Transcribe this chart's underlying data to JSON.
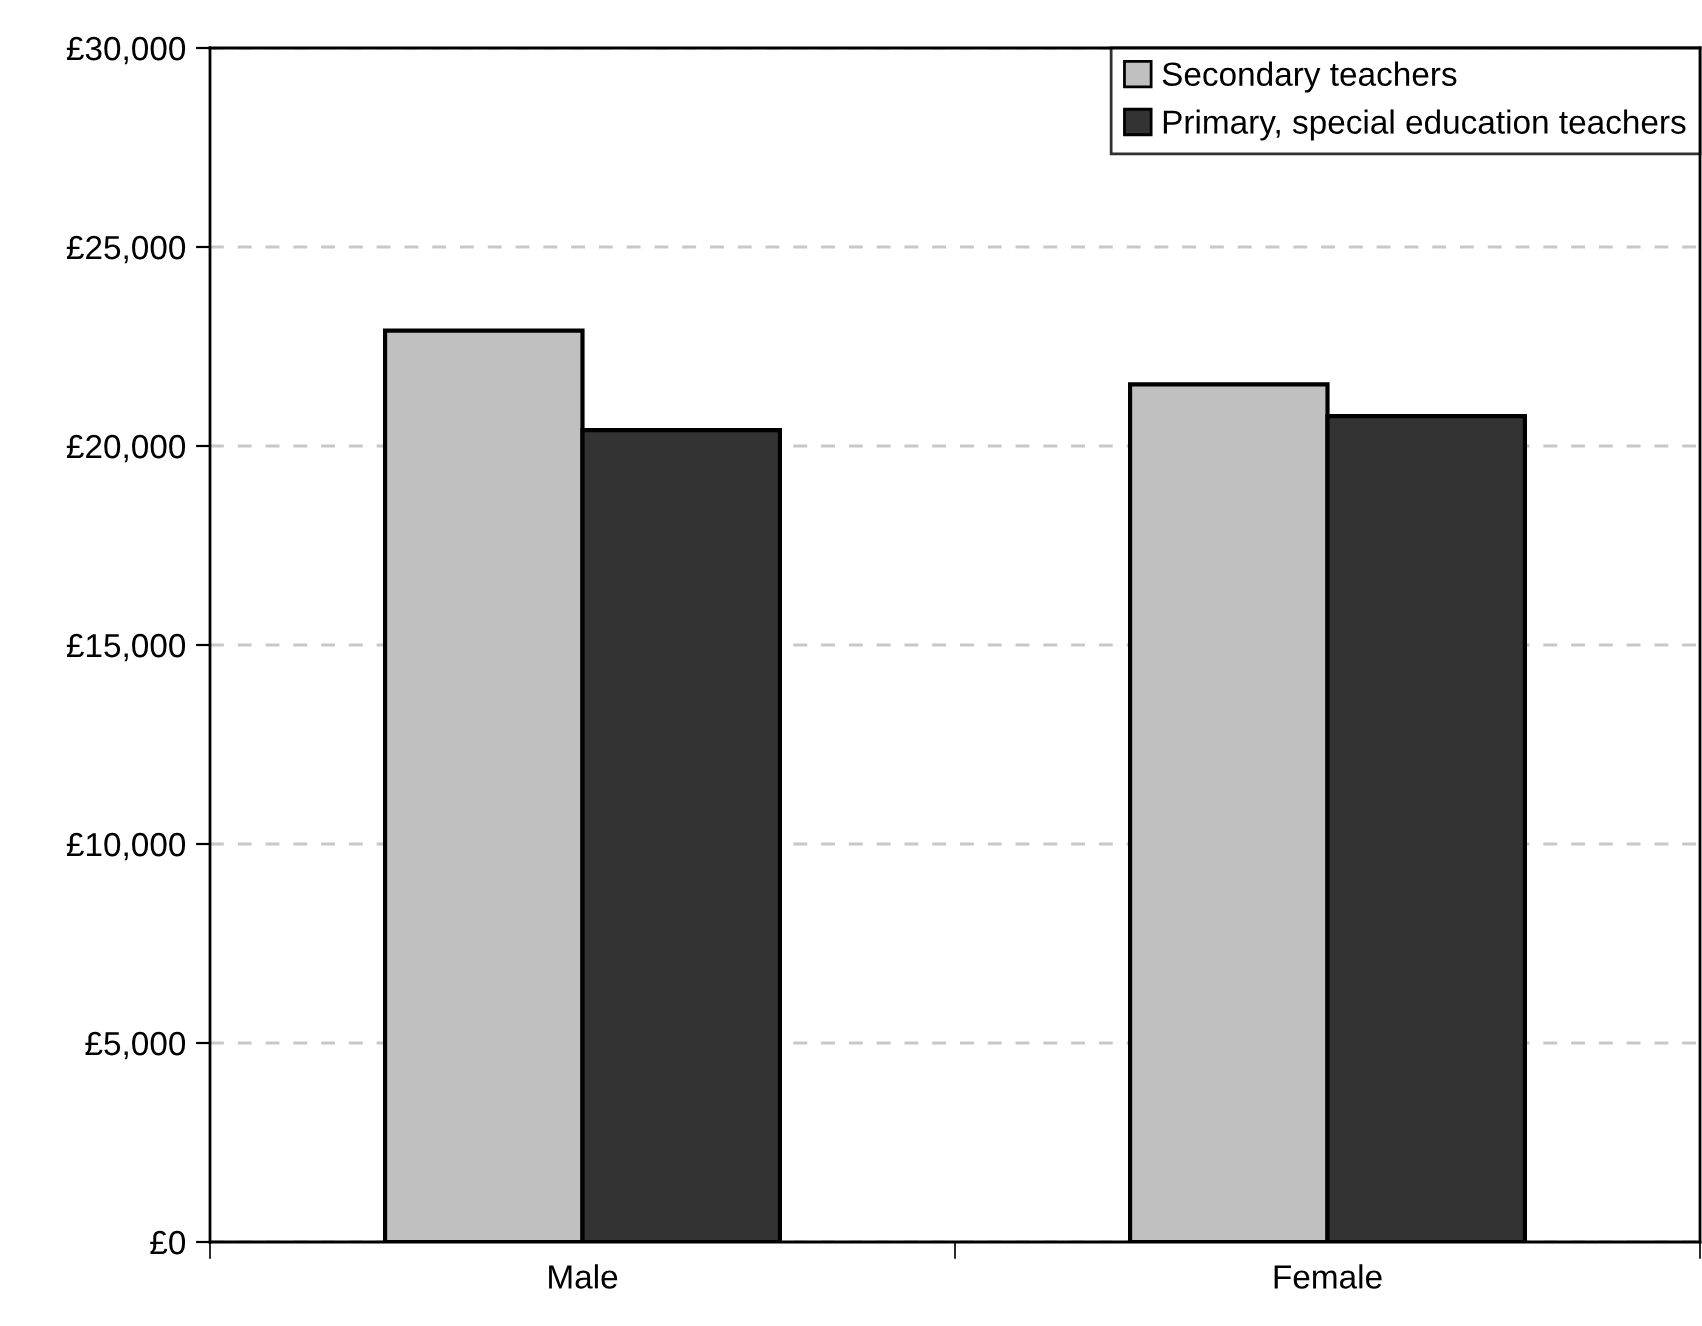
{
  "chart_data": {
    "type": "bar",
    "categories": [
      "Male",
      "Female"
    ],
    "series": [
      {
        "name": "Secondary teachers",
        "color": "#c0c0c0",
        "values": [
          22900,
          21550
        ]
      },
      {
        "name": "Primary, special education teachers",
        "color": "#333333",
        "values": [
          20400,
          20750
        ]
      }
    ],
    "ylim": [
      0,
      30000
    ],
    "yticks": [
      {
        "value": 0,
        "label": "£0"
      },
      {
        "value": 5000,
        "label": "£5,000"
      },
      {
        "value": 10000,
        "label": "£10,000"
      },
      {
        "value": 15000,
        "label": "£15,000"
      },
      {
        "value": 20000,
        "label": "£20,000"
      },
      {
        "value": 25000,
        "label": "£25,000"
      },
      {
        "value": 30000,
        "label": "£30,000"
      }
    ],
    "grid": "y",
    "legend": "top right"
  }
}
